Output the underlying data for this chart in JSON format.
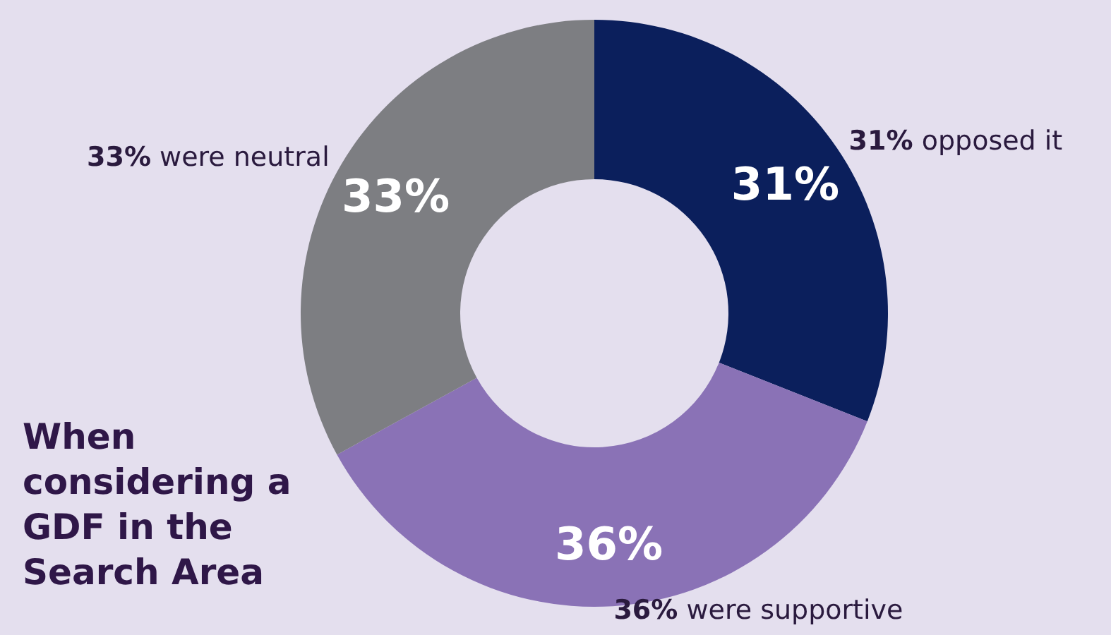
{
  "chart_data": {
    "type": "donut",
    "title": "When considering a GDF in the Search Area",
    "categories": [
      "31% opposed it",
      "36% were supportive",
      "33% were neutral"
    ],
    "values": [
      31,
      36,
      33
    ],
    "value_labels": [
      "31%",
      "36%",
      "33%"
    ],
    "colors": [
      "#0b1f5c",
      "#8a72b6",
      "#7d7e82"
    ]
  }
}
